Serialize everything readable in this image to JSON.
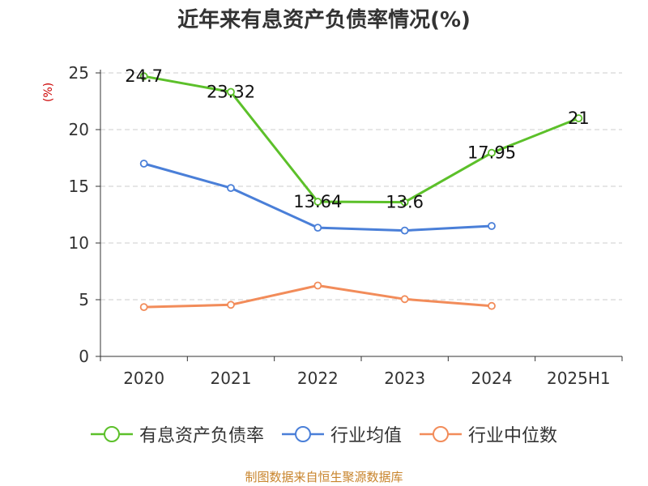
{
  "title": "近年来有息资产负债率情况(%)",
  "unit_label": "(%)",
  "source": "制图数据来自恒生聚源数据库",
  "colors": {
    "unit": "#cc0000",
    "source": "#c8842c",
    "grid": "#cccccc",
    "axis": "#333333"
  },
  "chart_data": {
    "type": "line",
    "categories": [
      "2020",
      "2021",
      "2022",
      "2023",
      "2024",
      "2025H1"
    ],
    "ylim": [
      0,
      25
    ],
    "yticks": [
      0,
      5,
      10,
      15,
      20,
      25
    ],
    "grid": true,
    "legend_position": "bottom",
    "series": [
      {
        "name": "有息资产负债率",
        "color": "#5cc02a",
        "values": [
          24.7,
          23.32,
          13.64,
          13.6,
          17.95,
          21
        ],
        "labels": [
          "24.7",
          "23.32",
          "13.64",
          "13.6",
          "17.95",
          "21"
        ]
      },
      {
        "name": "行业均值",
        "color": "#4a7fd8",
        "values": [
          17.0,
          14.85,
          11.35,
          11.1,
          11.5,
          null
        ]
      },
      {
        "name": "行业中位数",
        "color": "#f28c5a",
        "values": [
          4.35,
          4.55,
          6.25,
          5.05,
          4.45,
          null
        ]
      }
    ]
  }
}
